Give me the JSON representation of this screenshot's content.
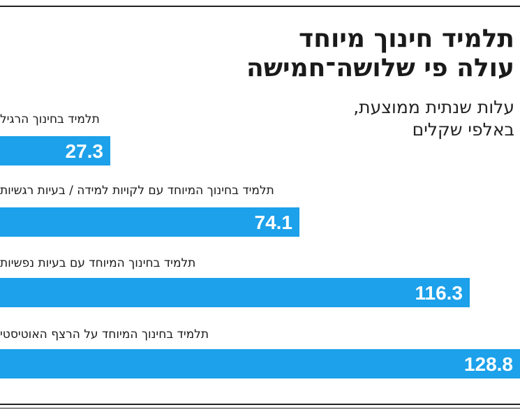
{
  "title_line1": "תלמיד חינוך מיוחד",
  "title_line2": "עולה פי שלושה־חמישה",
  "subtitle_line1": "עלות שנתית ממוצעת,",
  "subtitle_line2": "באלפי שקלים",
  "colors": {
    "bar": "#1ca1ea",
    "text": "#1a1a1a",
    "rule": "#222222"
  },
  "chart_data": {
    "type": "bar",
    "orientation": "horizontal",
    "categories": [
      "תלמיד בחינוך הרגיל",
      "תלמיד בחינוך המיוחד עם לקויות למידה / בעיות רגשיות",
      "תלמיד בחינוך המיוחד עם בעיות נפשיות",
      "תלמיד בחינוך המיוחד על הרצף האוטיסטי"
    ],
    "values": [
      27.3,
      74.1,
      116.3,
      128.8
    ],
    "value_labels": [
      "27.3",
      "74.1",
      "116.3",
      "128.8"
    ],
    "title": "תלמיד חינוך מיוחד עולה פי שלושה־חמישה",
    "subtitle": "עלות שנתית ממוצעת, באלפי שקלים",
    "xlim": [
      0,
      128.8
    ],
    "grid": false,
    "legend": "none"
  }
}
